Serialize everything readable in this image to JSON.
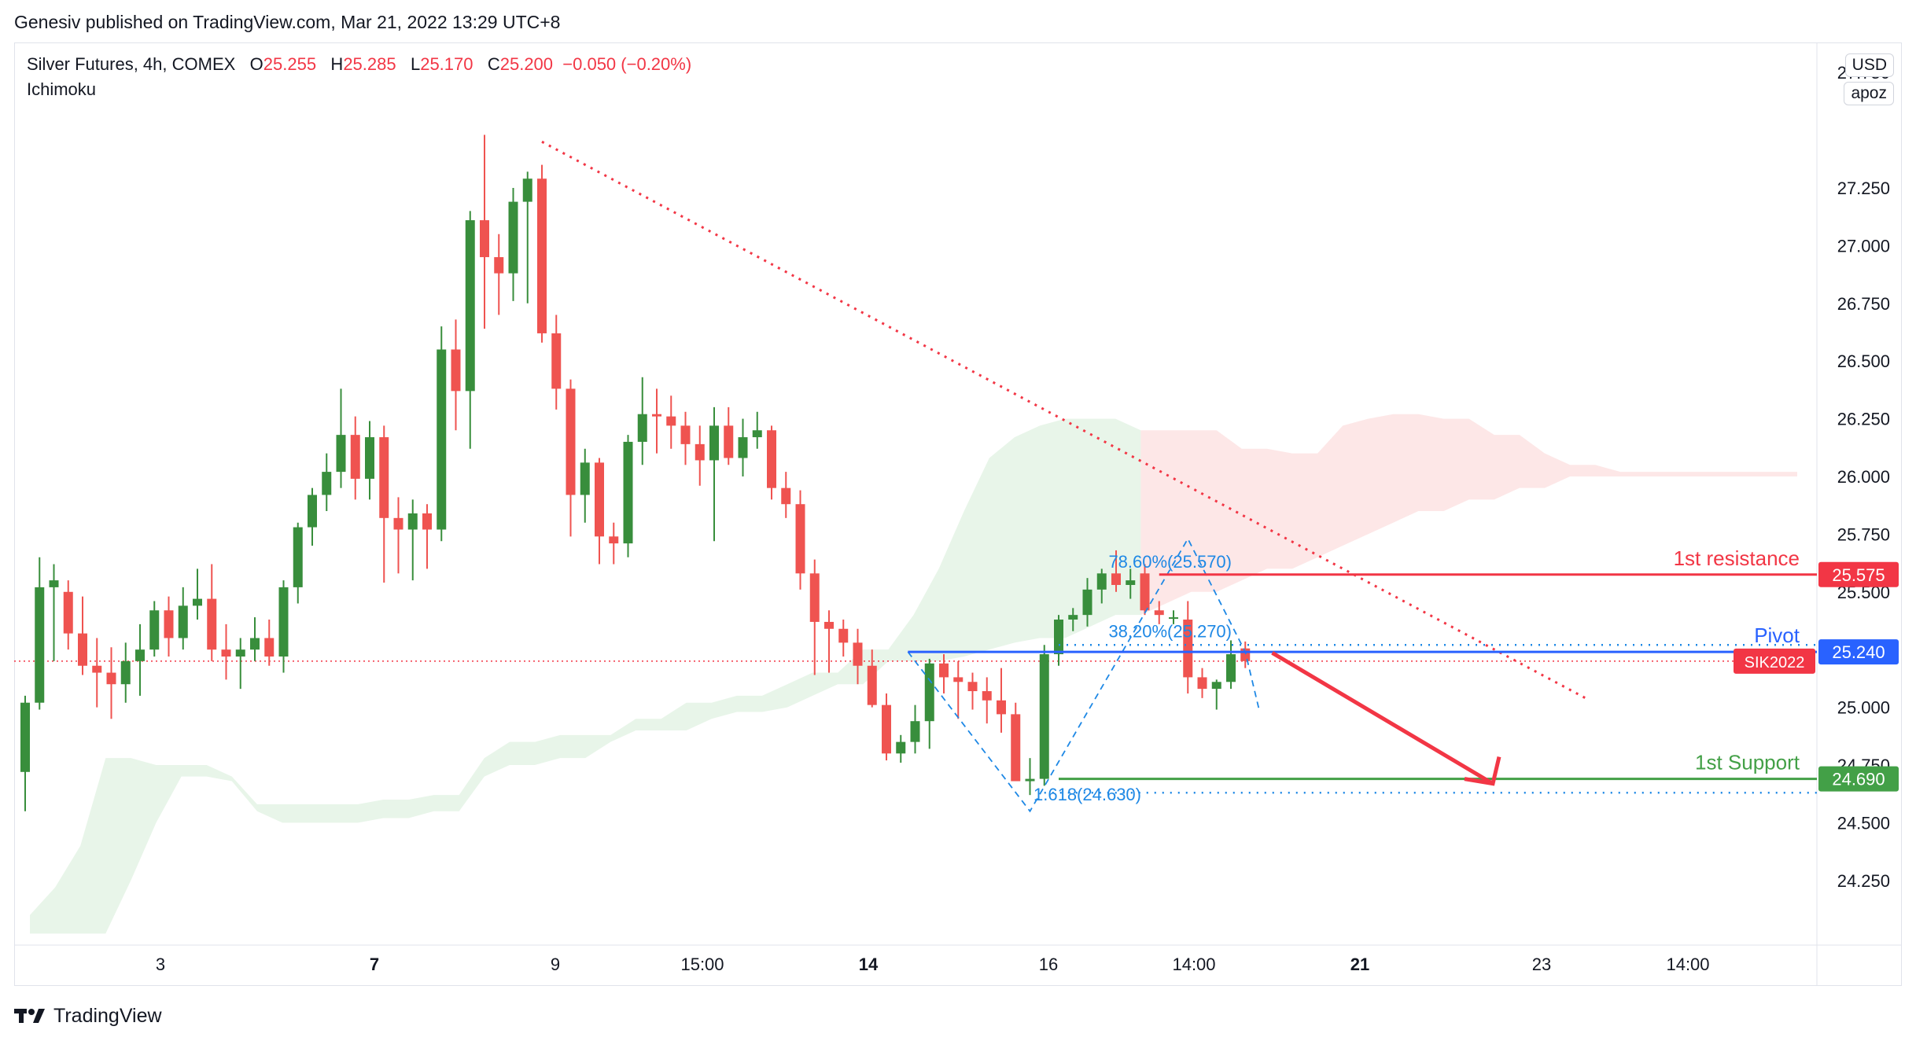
{
  "header": {
    "published": "Genesiv published on TradingView.com, Mar 21, 2022 13:29 UTC+8"
  },
  "legend": {
    "symbol": "Silver Futures, 4h, COMEX",
    "o_label": "O",
    "o": "25.255",
    "h_label": "H",
    "h": "25.285",
    "l_label": "L",
    "l": "25.170",
    "c_label": "C",
    "c": "25.200",
    "change": "−0.050 (−0.20%)",
    "indicator": "Ichimoku"
  },
  "scale": {
    "currency": "USD",
    "mode": "apoz"
  },
  "footer": {
    "brand": "TradingView"
  },
  "colors": {
    "up": "#388e3c",
    "down": "#ef5350",
    "resistance": "#f23645",
    "pivot": "#2962ff",
    "support": "#43a047",
    "cloud_bull": "#e8f5e9",
    "cloud_bear": "#fde7e7",
    "fib": "#1e88e5"
  },
  "chart_data": {
    "type": "candlestick",
    "title": "Silver Futures, 4h, COMEX",
    "ylim": [
      24.0,
      27.75
    ],
    "y_ticks": [
      "24.250",
      "24.500",
      "24.750",
      "25.000",
      "25.250",
      "25.500",
      "25.750",
      "26.000",
      "26.250",
      "26.500",
      "26.750",
      "27.000",
      "27.250",
      "27.750"
    ],
    "x_ticks": [
      "3",
      "7",
      "9",
      "15:00",
      "14",
      "16",
      "14:00",
      "21",
      "23",
      "14:00"
    ],
    "candles": [
      [
        24.72,
        25.05,
        24.55,
        25.02
      ],
      [
        25.02,
        25.65,
        24.99,
        25.52
      ],
      [
        25.52,
        25.62,
        25.2,
        25.55
      ],
      [
        25.5,
        25.55,
        25.25,
        25.32
      ],
      [
        25.32,
        25.48,
        25.14,
        25.18
      ],
      [
        25.18,
        25.3,
        25.0,
        25.15
      ],
      [
        25.15,
        25.26,
        24.95,
        25.1
      ],
      [
        25.1,
        25.28,
        25.02,
        25.2
      ],
      [
        25.2,
        25.36,
        25.05,
        25.25
      ],
      [
        25.25,
        25.46,
        25.22,
        25.42
      ],
      [
        25.42,
        25.48,
        25.22,
        25.3
      ],
      [
        25.3,
        25.52,
        25.25,
        25.44
      ],
      [
        25.44,
        25.6,
        25.38,
        25.47
      ],
      [
        25.47,
        25.62,
        25.2,
        25.25
      ],
      [
        25.25,
        25.36,
        25.12,
        25.22
      ],
      [
        25.22,
        25.3,
        25.08,
        25.25
      ],
      [
        25.25,
        25.39,
        25.2,
        25.3
      ],
      [
        25.3,
        25.38,
        25.18,
        25.22
      ],
      [
        25.22,
        25.55,
        25.15,
        25.52
      ],
      [
        25.52,
        25.8,
        25.45,
        25.78
      ],
      [
        25.78,
        25.95,
        25.7,
        25.92
      ],
      [
        25.92,
        26.1,
        25.85,
        26.02
      ],
      [
        26.02,
        26.38,
        25.95,
        26.18
      ],
      [
        26.18,
        26.26,
        25.9,
        25.99
      ],
      [
        25.99,
        26.24,
        25.9,
        26.17
      ],
      [
        26.17,
        26.22,
        25.54,
        25.82
      ],
      [
        25.82,
        25.91,
        25.58,
        25.77
      ],
      [
        25.77,
        25.9,
        25.55,
        25.84
      ],
      [
        25.84,
        25.88,
        25.6,
        25.77
      ],
      [
        25.77,
        26.65,
        25.72,
        26.55
      ],
      [
        26.55,
        26.68,
        26.2,
        26.37
      ],
      [
        26.37,
        27.15,
        26.12,
        27.11
      ],
      [
        27.11,
        27.48,
        26.64,
        26.95
      ],
      [
        26.95,
        27.05,
        26.7,
        26.88
      ],
      [
        26.88,
        27.25,
        26.76,
        27.19
      ],
      [
        27.19,
        27.32,
        26.75,
        27.29
      ],
      [
        27.29,
        27.35,
        26.58,
        26.62
      ],
      [
        26.62,
        26.7,
        26.29,
        26.38
      ],
      [
        26.38,
        26.42,
        25.74,
        25.92
      ],
      [
        25.92,
        26.12,
        25.8,
        26.06
      ],
      [
        26.06,
        26.08,
        25.62,
        25.74
      ],
      [
        25.74,
        25.8,
        25.62,
        25.71
      ],
      [
        25.71,
        26.18,
        25.65,
        26.15
      ],
      [
        26.15,
        26.43,
        26.05,
        26.27
      ],
      [
        26.27,
        26.38,
        26.1,
        26.26
      ],
      [
        26.26,
        26.35,
        26.12,
        26.22
      ],
      [
        26.22,
        26.28,
        26.05,
        26.14
      ],
      [
        26.14,
        26.22,
        25.96,
        26.07
      ],
      [
        26.07,
        26.3,
        25.72,
        26.22
      ],
      [
        26.22,
        26.3,
        26.05,
        26.08
      ],
      [
        26.08,
        26.25,
        26.0,
        26.17
      ],
      [
        26.17,
        26.28,
        26.12,
        26.2
      ],
      [
        26.2,
        26.22,
        25.9,
        25.95
      ],
      [
        25.95,
        26.02,
        25.82,
        25.88
      ],
      [
        25.88,
        25.94,
        25.51,
        25.58
      ],
      [
        25.58,
        25.64,
        25.14,
        25.37
      ],
      [
        25.37,
        25.42,
        25.15,
        25.34
      ],
      [
        25.34,
        25.38,
        25.22,
        25.28
      ],
      [
        25.28,
        25.34,
        25.1,
        25.18
      ],
      [
        25.18,
        25.25,
        25.0,
        25.01
      ],
      [
        25.01,
        25.06,
        24.77,
        24.8
      ],
      [
        24.8,
        24.88,
        24.76,
        24.85
      ],
      [
        24.85,
        25.01,
        24.8,
        24.94
      ],
      [
        24.94,
        25.21,
        24.82,
        25.19
      ],
      [
        25.19,
        25.23,
        25.06,
        25.13
      ],
      [
        25.13,
        25.2,
        24.95,
        25.11
      ],
      [
        25.11,
        25.15,
        24.99,
        25.07
      ],
      [
        25.07,
        25.13,
        24.93,
        25.03
      ],
      [
        25.03,
        25.17,
        24.89,
        24.97
      ],
      [
        24.97,
        25.02,
        24.68,
        24.68
      ],
      [
        24.68,
        24.78,
        24.62,
        24.69
      ],
      [
        24.69,
        25.27,
        24.66,
        25.23
      ],
      [
        25.23,
        25.4,
        25.18,
        25.38
      ],
      [
        25.38,
        25.43,
        25.33,
        25.4
      ],
      [
        25.4,
        25.56,
        25.35,
        25.51
      ],
      [
        25.51,
        25.6,
        25.45,
        25.58
      ],
      [
        25.58,
        25.68,
        25.5,
        25.53
      ],
      [
        25.53,
        25.6,
        25.47,
        25.55
      ],
      [
        25.58,
        25.62,
        25.4,
        25.42
      ],
      [
        25.42,
        25.46,
        25.36,
        25.4
      ],
      [
        25.39,
        25.42,
        25.36,
        25.39
      ],
      [
        25.38,
        25.46,
        25.06,
        25.13
      ],
      [
        25.13,
        25.17,
        25.04,
        25.08
      ],
      [
        25.08,
        25.12,
        24.99,
        25.11
      ],
      [
        25.11,
        25.29,
        25.08,
        25.23
      ],
      [
        25.255,
        25.285,
        25.17,
        25.2
      ]
    ],
    "ichimoku_cloud": {
      "upper": [
        24.1,
        24.22,
        24.4,
        24.78,
        24.78,
        24.75,
        24.75,
        24.75,
        24.7,
        24.58,
        24.58,
        24.58,
        24.58,
        24.58,
        24.6,
        24.6,
        24.62,
        24.62,
        24.78,
        24.85,
        24.85,
        24.88,
        24.88,
        24.88,
        24.95,
        24.95,
        25.02,
        25.02,
        25.05,
        25.05,
        25.1,
        25.15,
        25.15,
        25.25,
        25.25,
        25.4,
        25.6,
        25.85,
        26.08,
        26.17,
        26.22,
        26.25,
        26.25,
        26.25,
        26.2,
        26.2,
        26.2,
        26.2,
        26.12,
        26.12,
        26.1,
        26.1,
        26.22,
        26.25,
        26.27,
        26.27,
        26.25,
        26.25,
        26.18,
        26.18,
        26.1,
        26.05,
        26.05,
        26.02,
        26.02,
        26.02,
        26.02,
        26.02,
        26.02,
        26.02,
        26.02
      ],
      "lower": [
        24.02,
        24.02,
        24.02,
        24.02,
        24.25,
        24.5,
        24.7,
        24.7,
        24.68,
        24.55,
        24.5,
        24.5,
        24.5,
        24.5,
        24.52,
        24.52,
        24.55,
        24.55,
        24.7,
        24.75,
        24.75,
        24.78,
        24.78,
        24.85,
        24.9,
        24.9,
        24.9,
        24.95,
        24.98,
        24.98,
        25.0,
        25.05,
        25.1,
        25.1,
        25.2,
        25.2,
        25.2,
        25.22,
        25.25,
        25.28,
        25.3,
        25.3,
        25.35,
        25.4,
        25.4,
        25.45,
        25.5,
        25.5,
        25.55,
        25.6,
        25.6,
        25.65,
        25.7,
        25.75,
        25.8,
        25.85,
        25.85,
        25.9,
        25.9,
        25.95,
        25.95,
        26.0,
        26.0,
        26.0,
        26.0,
        26.0,
        26.0,
        26.0,
        26.0,
        26.0,
        26.0
      ],
      "bear_from_index": 44
    },
    "levels": [
      {
        "label": "1st resistance",
        "value": 25.575,
        "value_text": "25.575"
      },
      {
        "label": "Pivot",
        "value": 25.24,
        "value_text": "25.240"
      },
      {
        "label": "1st Support",
        "value": 24.69,
        "value_text": "24.690"
      }
    ],
    "last_price_tag": "SIK2022",
    "last_price": 25.2,
    "fib_labels": [
      "78.60%(25.570)",
      "38.20%(25.270)",
      "1.618(24.630)"
    ],
    "fib_values": [
      25.57,
      25.27,
      24.63
    ],
    "trendline": {
      "from": [
        36,
        27.45
      ],
      "to": [
        109,
        25.03
      ]
    },
    "projection_arrow": {
      "from": [
        86,
        25.27
      ],
      "to": [
        93,
        24.69
      ]
    }
  }
}
